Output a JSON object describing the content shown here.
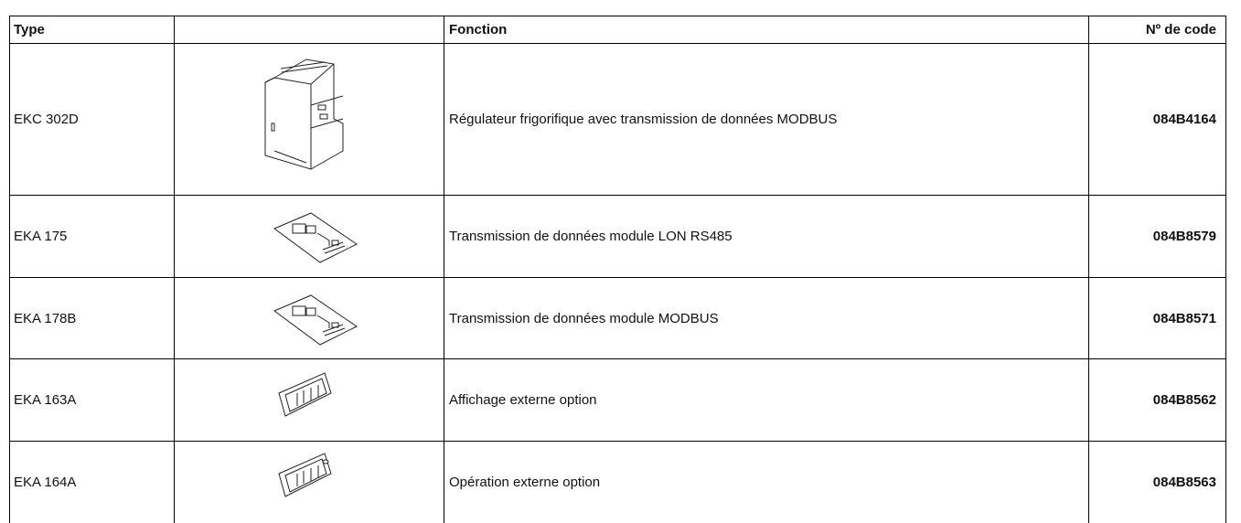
{
  "table": {
    "header": [
      "Type",
      "Fonction",
      "Nº de code"
    ],
    "rows": [
      [
        "EKC 302D",
        "Régulateur frigorifique avec transmission de données  MODBUS",
        "084B4164"
      ],
      [
        "EKA 175",
        "Transmission de données module LON RS485",
        "084B8579"
      ],
      [
        "EKA 178B",
        "Transmission de données module MODBUS",
        "084B8571"
      ],
      [
        "EKA 163A",
        "Affichage externe option",
        "084B8562"
      ],
      [
        "EKA 164A",
        "Opération externe option",
        "084B8563"
      ]
    ]
  }
}
